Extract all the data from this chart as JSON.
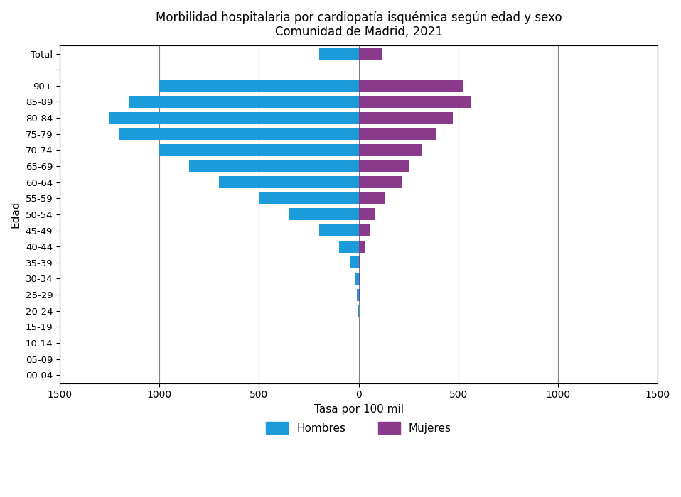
{
  "title_line1": "Morbilidad hospitalaria por cardiopatía isquémica según edad y sexo",
  "title_line2": "Comunidad de Madrid, 2021",
  "xlabel": "Tasa por 100 mil",
  "ylabel": "Edad",
  "categories": [
    "Total",
    "",
    "90+",
    "85-89",
    "80-84",
    "75-79",
    "70-74",
    "65-69",
    "60-64",
    "55-59",
    "50-54",
    "45-49",
    "40-44",
    "35-39",
    "30-34",
    "25-29",
    "20-24",
    "15-19",
    "10-14",
    "05-09",
    "00-04"
  ],
  "hombres": [
    200,
    0,
    1000,
    1150,
    1250,
    1200,
    1000,
    850,
    700,
    500,
    350,
    200,
    100,
    40,
    15,
    8,
    5,
    0,
    0,
    0,
    0
  ],
  "mujeres": [
    120,
    0,
    520,
    560,
    470,
    385,
    320,
    255,
    215,
    130,
    80,
    55,
    35,
    10,
    5,
    3,
    2,
    0,
    0,
    0,
    0
  ],
  "color_hombres": "#1B9CD9",
  "color_mujeres": "#8B3A8B",
  "xlim": 1500,
  "background_color": "#ffffff",
  "grid_color": "#808080"
}
